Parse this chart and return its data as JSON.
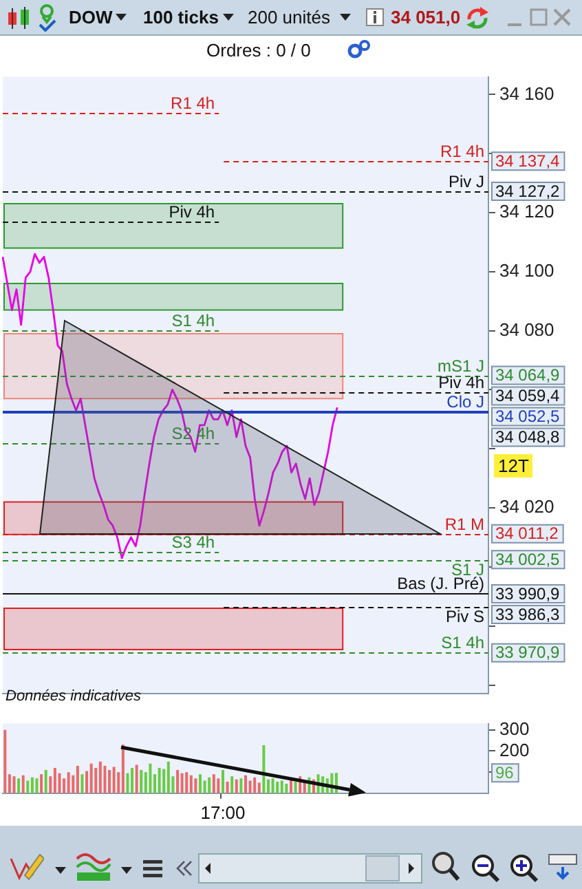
{
  "chart_data": [
    {
      "type": "line",
      "color": "#e600e6",
      "categories": [
        null,
        null,
        null,
        null,
        null,
        null,
        null,
        null,
        null,
        null,
        null,
        null,
        null,
        null,
        null,
        null,
        null,
        null,
        null,
        null,
        null,
        null,
        null,
        null,
        null,
        null,
        null,
        null,
        null,
        null,
        null,
        null,
        null,
        null,
        null,
        null,
        null,
        null,
        null,
        null,
        null,
        null,
        null,
        null,
        null,
        null,
        null,
        null,
        null,
        null,
        null,
        null,
        null,
        null,
        null,
        null,
        null,
        null,
        null,
        null,
        null,
        null,
        null,
        null,
        null,
        null,
        null,
        null,
        null,
        null,
        null,
        null,
        null,
        null,
        null,
        null,
        null,
        null,
        null,
        null,
        null,
        null,
        null,
        null,
        null,
        null,
        null,
        null,
        null,
        null,
        null,
        null,
        null,
        null,
        null,
        null,
        null,
        null,
        null,
        null,
        null,
        null,
        null,
        null,
        null,
        null,
        null
      ],
      "values": [
        34105,
        34096,
        34087,
        34094,
        34082,
        34098,
        34100,
        34106,
        34103,
        34105,
        34098,
        34087,
        34075,
        34073,
        34062,
        34057,
        34053,
        34057,
        34048,
        34039,
        34030,
        34025,
        34021,
        34016,
        34014,
        34010,
        34003,
        34007,
        34010,
        34007,
        34014,
        34025,
        34035,
        34044,
        34050,
        34053,
        34055,
        34060,
        34057,
        34053,
        34046,
        34044,
        34039,
        34048,
        34048,
        34053,
        34050,
        34050,
        34053,
        34048,
        34053,
        34044,
        34050,
        34041,
        34037,
        34023,
        34014,
        34019,
        34025,
        34032,
        34035,
        34039,
        34041,
        34032,
        34035,
        34028,
        34023,
        34030,
        34021,
        34025,
        34032,
        34039,
        34048,
        34054,
        null,
        null,
        null,
        null,
        null,
        null,
        null,
        null,
        null,
        null,
        null,
        null,
        null,
        null,
        null,
        null,
        null,
        null,
        null,
        null,
        null,
        null,
        null,
        null,
        null,
        null,
        null,
        null,
        null,
        null,
        null,
        null,
        null
      ],
      "ylim": [
        33957,
        34166
      ],
      "yticks": [
        {
          "value": 34160,
          "label": "34 160"
        },
        {
          "value": 34140,
          "label": null
        },
        {
          "value": 34120,
          "label": "34 120"
        },
        {
          "value": 34100,
          "label": "34 100"
        },
        {
          "value": 34080,
          "label": "34 080"
        },
        {
          "value": 34060,
          "label": null
        },
        {
          "value": 34040,
          "label": null
        },
        {
          "value": 34020,
          "label": "34 020"
        },
        {
          "value": 34000,
          "label": null
        },
        {
          "value": 33980,
          "label": null
        },
        {
          "value": 33960,
          "label": null
        }
      ],
      "tick_labels": "y",
      "bands": [
        {
          "axis": "y",
          "from": 34108,
          "to": 34123,
          "color": "#2e9a2e"
        },
        {
          "axis": "y",
          "from": 34087,
          "to": 34096,
          "color": "#2e9a2e"
        },
        {
          "axis": "y",
          "from": 34057,
          "to": 34079,
          "color": "#f08878"
        },
        {
          "axis": "y",
          "from": 34011,
          "to": 34022,
          "color": "#e02020"
        },
        {
          "axis": "y",
          "from": 33972,
          "to": 33986,
          "color": "#e02020"
        }
      ],
      "ref_lines": [
        {
          "axis": "y",
          "value": 34154,
          "label": "R1 4h",
          "color": "#d42020",
          "line_style": "dashed"
        },
        {
          "axis": "y",
          "value": 34117,
          "label": "Piv 4h",
          "color": "#111111",
          "line_style": "dashed"
        },
        {
          "axis": "y",
          "value": 34080,
          "label": "S1 4h",
          "color": "#2e8b2e",
          "line_style": "dashed"
        },
        {
          "axis": "y",
          "value": 34042,
          "label": "S2 4h",
          "color": "#2e8b2e",
          "line_style": "dashed"
        },
        {
          "axis": "y",
          "value": 34005,
          "label": "S3 4h",
          "color": "#2e8b2e",
          "line_style": "dashed"
        },
        {
          "axis": "y",
          "value": 34137.4,
          "label": "R1 4h",
          "color": "#d42020",
          "line_style": "dashed"
        },
        {
          "axis": "y",
          "value": 34127.2,
          "label": "Piv J",
          "color": "#111111",
          "line_style": "dashed"
        },
        {
          "axis": "y",
          "value": 34064.9,
          "label": "mS1 J",
          "color": "#2e8b2e",
          "line_style": "dashed"
        },
        {
          "axis": "y",
          "value": 34059.4,
          "label": "Piv 4h",
          "color": "#111111",
          "line_style": "dashed"
        },
        {
          "axis": "y",
          "value": 34052.5,
          "label": "Clo J",
          "color": "#1f3fbf",
          "line_style": "solid"
        },
        {
          "axis": "y",
          "value": 34011.2,
          "label": "R1 M",
          "color": "#d42020",
          "line_style": "dashed"
        },
        {
          "axis": "y",
          "value": 34002.5,
          "label": "S1 J",
          "color": "#2e8b2e",
          "line_style": "dashed"
        },
        {
          "axis": "y",
          "value": 33990.9,
          "label": "Bas (J. Pré)",
          "color": "#111111",
          "line_style": "solid"
        },
        {
          "axis": "y",
          "value": 33986.3,
          "label": "Piv S",
          "color": "#111111",
          "line_style": "dashed"
        },
        {
          "axis": "y",
          "value": 33970.9,
          "label": "S1 4h",
          "color": "#2e8b2e",
          "line_style": "dashed"
        }
      ],
      "annotations": [
        "DOW",
        "100 ticks",
        "200 unités",
        "34 051,0",
        "Ordres : 0 / 0",
        "Données indicatives",
        "12T",
        "34 137,4",
        "34 127,2",
        "34 064,9",
        "34 059,4",
        "34 052,5",
        "34 048,8",
        "34 011,2",
        "34 002,5",
        "33 990,9",
        "33 986,3",
        "33 970,9"
      ]
    },
    {
      "type": "bar",
      "categories": [
        null,
        null,
        null,
        null,
        null,
        null,
        null,
        null,
        null,
        null,
        null,
        null,
        null,
        null,
        null,
        null,
        null,
        null,
        null,
        null,
        null,
        null,
        null,
        null,
        null,
        null,
        null,
        null,
        null,
        null,
        null,
        null,
        null,
        null,
        null,
        null,
        null,
        null,
        null,
        null,
        null,
        null,
        null,
        null,
        null,
        null,
        null,
        null,
        "17:00",
        null,
        null,
        null,
        null,
        null,
        null,
        null,
        null,
        null,
        null,
        null,
        null,
        null,
        null,
        null,
        null,
        null,
        null,
        null,
        null,
        null,
        null,
        null,
        null,
        null,
        null,
        null,
        null,
        null,
        null,
        null,
        null,
        null,
        null,
        null,
        null,
        null,
        null,
        null,
        null,
        null,
        null,
        null,
        null,
        null,
        null,
        null,
        null,
        null,
        null,
        null,
        null,
        null,
        null,
        null,
        null,
        null,
        null
      ],
      "values": [
        300,
        90,
        80,
        70,
        85,
        60,
        75,
        70,
        90,
        110,
        80,
        120,
        95,
        70,
        100,
        85,
        130,
        90,
        105,
        140,
        120,
        150,
        130,
        110,
        125,
        100,
        230,
        95,
        120,
        135,
        110,
        100,
        140,
        90,
        120,
        115,
        150,
        80,
        110,
        95,
        100,
        85,
        70,
        90,
        60,
        75,
        90,
        70,
        110,
        55,
        80,
        65,
        70,
        85,
        60,
        75,
        50,
        228,
        65,
        70,
        55,
        60,
        45,
        70,
        55,
        80,
        60,
        75,
        65,
        90,
        80,
        70,
        95,
        96,
        null,
        null,
        null,
        null,
        null,
        null,
        null,
        null,
        null,
        null,
        null,
        null,
        null,
        null,
        null,
        null,
        null,
        null,
        null,
        null,
        null,
        null,
        null,
        null,
        null,
        null,
        null,
        null,
        null,
        null,
        null,
        null,
        null
      ],
      "colors": [
        "#e86a6a",
        "#e86a6a",
        "#e86a6a",
        "#66cc44",
        "#e86a6a",
        "#66cc44",
        "#66cc44",
        "#66cc44",
        "#e86a6a",
        "#66cc44",
        "#e86a6a",
        "#e86a6a",
        "#e86a6a",
        "#e86a6a",
        "#e86a6a",
        "#e86a6a",
        "#e86a6a",
        "#66cc44",
        "#e86a6a",
        "#e86a6a",
        "#e86a6a",
        "#e86a6a",
        "#e86a6a",
        "#e86a6a",
        "#e86a6a",
        "#e86a6a",
        "#e86a6a",
        "#66cc44",
        "#66cc44",
        "#e86a6a",
        "#66cc44",
        "#66cc44",
        "#66cc44",
        "#66cc44",
        "#66cc44",
        "#66cc44",
        "#66cc44",
        "#66cc44",
        "#e86a6a",
        "#e86a6a",
        "#e86a6a",
        "#e86a6a",
        "#e86a6a",
        "#66cc44",
        "#66cc44",
        "#66cc44",
        "#e86a6a",
        "#e86a6a",
        "#66cc44",
        "#e86a6a",
        "#66cc44",
        "#e86a6a",
        "#66cc44",
        "#e86a6a",
        "#e86a6a",
        "#e86a6a",
        "#e86a6a",
        "#66cc44",
        "#66cc44",
        "#66cc44",
        "#66cc44",
        "#66cc44",
        "#66cc44",
        "#e86a6a",
        "#66cc44",
        "#e86a6a",
        "#e86a6a",
        "#66cc44",
        "#e86a6a",
        "#66cc44",
        "#66cc44",
        "#66cc44",
        "#66cc44",
        "#66cc44",
        null,
        null,
        null,
        null,
        null,
        null,
        null,
        null,
        null,
        null,
        null,
        null,
        null,
        null,
        null,
        null,
        null,
        null,
        null,
        null,
        null,
        null,
        null,
        null,
        null,
        null,
        null,
        null,
        null,
        null,
        null,
        null,
        null
      ],
      "ylim": [
        0,
        330
      ],
      "yticks": [
        {
          "value": 100,
          "label": null
        },
        200,
        300
      ],
      "annotations": [
        "96"
      ]
    }
  ]
}
